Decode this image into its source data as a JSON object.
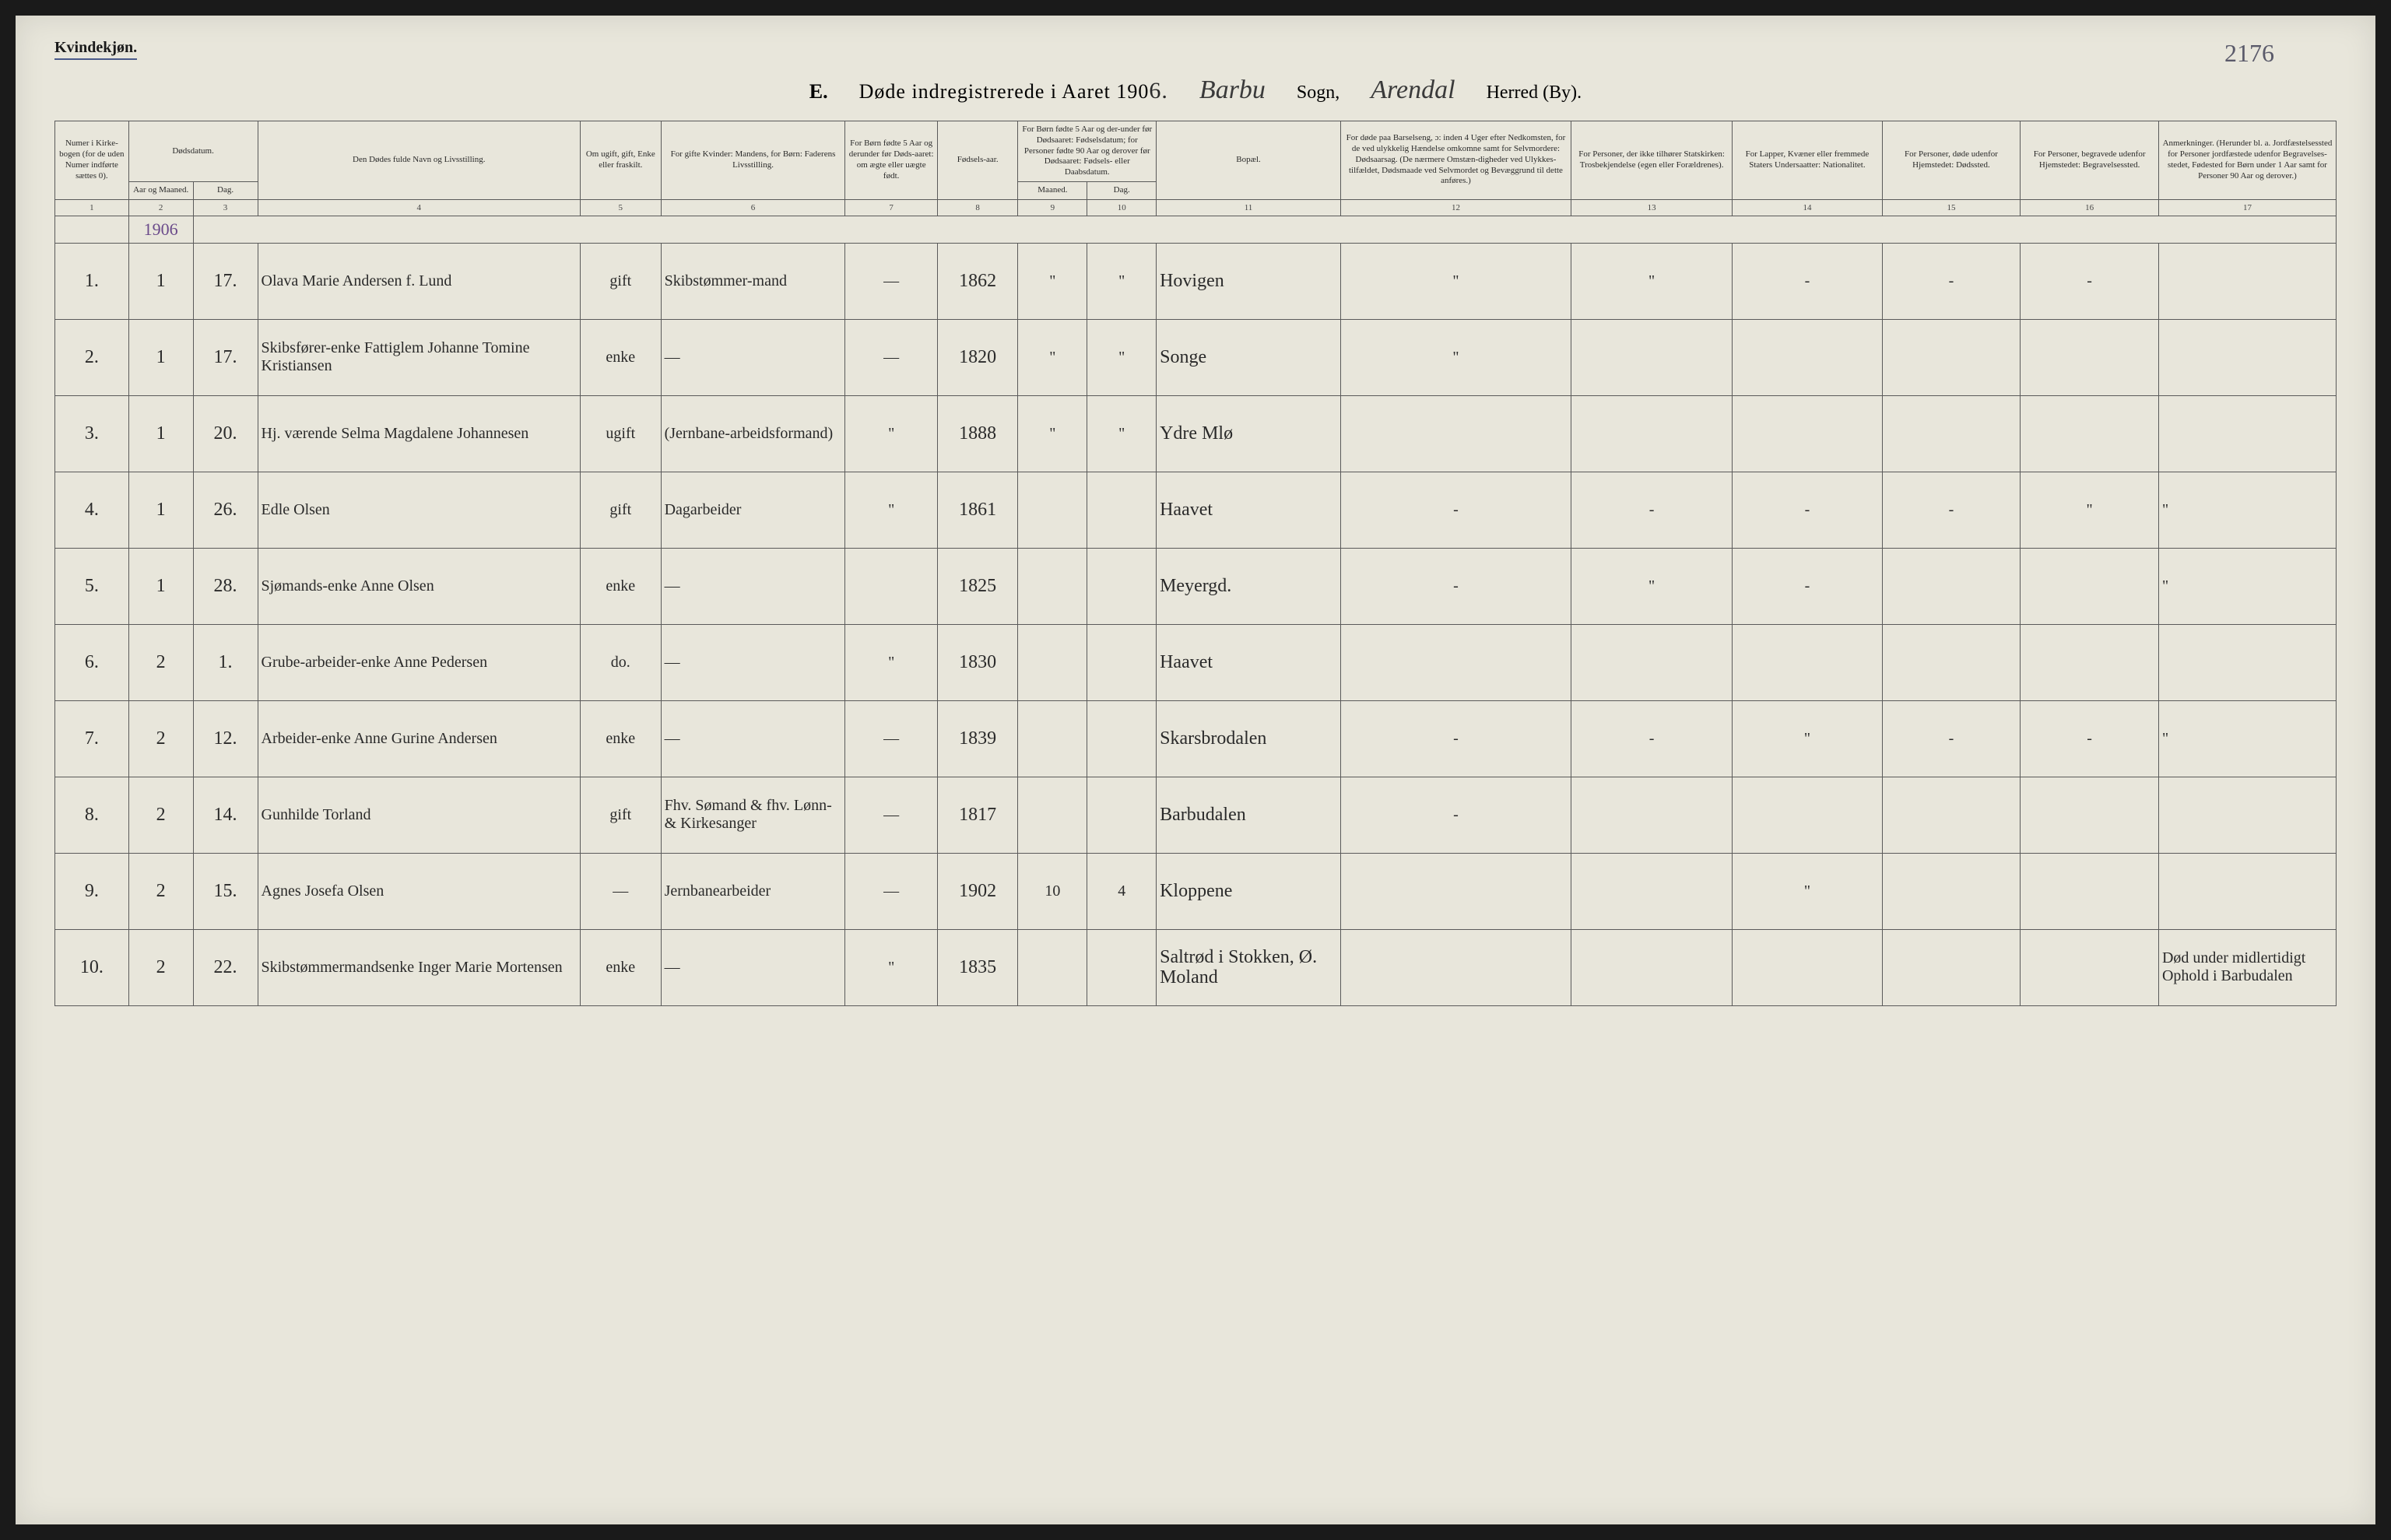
{
  "page": {
    "gender_label": "Kvindekjøn.",
    "page_number": "2176",
    "title_prefix": "E.",
    "title_text": "Døde indregistrerede i Aaret 190",
    "title_year_handwritten": "6.",
    "parish_handwritten": "Barbu",
    "parish_label": "Sogn,",
    "district_handwritten": "Arendal",
    "district_label": "Herred (By)."
  },
  "colors": {
    "paper": "#e8e6db",
    "ink": "#2a2a2a",
    "rule": "#5a5a5a",
    "underline": "#4a5a8a",
    "year_note": "#6a4a8a"
  },
  "columns": {
    "c1": "Numer i Kirke-bogen (for de uden Numer indførte sættes 0).",
    "c2_3_group": "Dødsdatum.",
    "c2": "Aar og Maaned.",
    "c3": "Dag.",
    "c4": "Den Dødes fulde Navn og Livsstilling.",
    "c5": "Om ugift, gift, Enke eller fraskilt.",
    "c6": "For gifte Kvinder: Mandens, for Børn: Faderens Livsstilling.",
    "c7": "For Børn fødte 5 Aar og derunder før Døds-aaret: om ægte eller uægte født.",
    "c8": "Fødsels-aar.",
    "c9_10_group": "For Børn fødte 5 Aar og der-under før Dødsaaret: Fødselsdatum; for Personer fødte 90 Aar og derover før Dødsaaret: Fødsels- eller Daabsdatum.",
    "c9": "Maaned.",
    "c10": "Dag.",
    "c11": "Bopæl.",
    "c12": "For døde paa Barselseng, ɔ: inden 4 Uger efter Nedkomsten, for de ved ulykkelig Hændelse omkomne samt for Selvmordere: Dødsaarsag. (De nærmere Omstæn-digheder ved Ulykkes-tilfældet, Dødsmaade ved Selvmordet og Bevæggrund til dette anføres.)",
    "c13": "For Personer, der ikke tilhører Statskirken: Trosbekjendelse (egen eller Forældrenes).",
    "c14": "For Lapper, Kvæner eller fremmede Staters Undersaatter: Nationalitet.",
    "c15": "For Personer, døde udenfor Hjemstedet: Dødssted.",
    "c16": "For Personer, begravede udenfor Hjemstedet: Begravelsessted.",
    "c17": "Anmerkninger. (Herunder bl. a. Jordfæstelsessted for Personer jordfæstede udenfor Begravelses-stedet, Fødested for Børn under 1 Aar samt for Personer 90 Aar og derover.)"
  },
  "col_numbers": [
    "1",
    "2",
    "3",
    "4",
    "5",
    "6",
    "7",
    "8",
    "9",
    "10",
    "11",
    "12",
    "13",
    "14",
    "15",
    "16",
    "17"
  ],
  "year_note": "1906",
  "rows": [
    {
      "num": "1.",
      "month": "1",
      "day": "17.",
      "name": "Olava Marie Andersen f. Lund",
      "status": "gift",
      "spouse": "Skibstømmer-mand",
      "legit": "—",
      "birth_year": "1862",
      "bm": "\"",
      "bd": "\"",
      "residence": "Hovigen",
      "c12": "\"",
      "c13": "\"",
      "c14": "-",
      "c15": "-",
      "c16": "-",
      "c17": ""
    },
    {
      "num": "2.",
      "month": "1",
      "day": "17.",
      "name": "Skibsfører-enke Fattiglem Johanne Tomine Kristiansen",
      "status": "enke",
      "spouse": "—",
      "legit": "—",
      "birth_year": "1820",
      "bm": "\"",
      "bd": "\"",
      "residence": "Songe",
      "c12": "\"",
      "c13": "",
      "c14": "",
      "c15": "",
      "c16": "",
      "c17": ""
    },
    {
      "num": "3.",
      "month": "1",
      "day": "20.",
      "name": "Hj. værende Selma Magdalene Johannesen",
      "status": "ugift",
      "spouse": "(Jernbane-arbeidsformand)",
      "legit": "\"",
      "birth_year": "1888",
      "bm": "\"",
      "bd": "\"",
      "residence": "Ydre Mlø",
      "c12": "",
      "c13": "",
      "c14": "",
      "c15": "",
      "c16": "",
      "c17": ""
    },
    {
      "num": "4.",
      "month": "1",
      "day": "26.",
      "name": "Edle Olsen",
      "status": "gift",
      "spouse": "Dagarbeider",
      "legit": "\"",
      "birth_year": "1861",
      "bm": "",
      "bd": "",
      "residence": "Haavet",
      "c12": "-",
      "c13": "-",
      "c14": "-",
      "c15": "-",
      "c16": "\"",
      "c17": "\""
    },
    {
      "num": "5.",
      "month": "1",
      "day": "28.",
      "name": "Sjømands-enke Anne Olsen",
      "status": "enke",
      "spouse": "—",
      "legit": "",
      "birth_year": "1825",
      "bm": "",
      "bd": "",
      "residence": "Meyergd.",
      "c12": "-",
      "c13": "\"",
      "c14": "-",
      "c15": "",
      "c16": "",
      "c17": "\""
    },
    {
      "num": "6.",
      "month": "2",
      "day": "1.",
      "name": "Grube-arbeider-enke Anne Pedersen",
      "status": "do.",
      "spouse": "—",
      "legit": "\"",
      "birth_year": "1830",
      "bm": "",
      "bd": "",
      "residence": "Haavet",
      "c12": "",
      "c13": "",
      "c14": "",
      "c15": "",
      "c16": "",
      "c17": ""
    },
    {
      "num": "7.",
      "month": "2",
      "day": "12.",
      "name": "Arbeider-enke Anne Gurine Andersen",
      "status": "enke",
      "spouse": "—",
      "legit": "—",
      "birth_year": "1839",
      "bm": "",
      "bd": "",
      "residence": "Skarsbrodalen",
      "c12": "-",
      "c13": "-",
      "c14": "\"",
      "c15": "-",
      "c16": "-",
      "c17": "\""
    },
    {
      "num": "8.",
      "month": "2",
      "day": "14.",
      "name": "Gunhilde Torland",
      "status": "gift",
      "spouse": "Fhv. Sømand & fhv. Lønn- & Kirkesanger",
      "legit": "—",
      "birth_year": "1817",
      "bm": "",
      "bd": "",
      "residence": "Barbudalen",
      "c12": "-",
      "c13": "",
      "c14": "",
      "c15": "",
      "c16": "",
      "c17": ""
    },
    {
      "num": "9.",
      "month": "2",
      "day": "15.",
      "name": "Agnes Josefa Olsen",
      "status": "—",
      "spouse": "Jernbanearbeider",
      "legit": "—",
      "birth_year": "1902",
      "bm": "10",
      "bd": "4",
      "residence": "Kloppene",
      "c12": "",
      "c13": "",
      "c14": "\"",
      "c15": "",
      "c16": "",
      "c17": ""
    },
    {
      "num": "10.",
      "month": "2",
      "day": "22.",
      "name": "Skibstømmermandsenke Inger Marie Mortensen",
      "status": "enke",
      "spouse": "—",
      "legit": "\"",
      "birth_year": "1835",
      "bm": "",
      "bd": "",
      "residence": "Saltrød i Stokken, Ø. Moland",
      "c12": "",
      "c13": "",
      "c14": "",
      "c15": "",
      "c16": "",
      "c17": "Død under midlertidigt Ophold i Barbudalen"
    }
  ]
}
